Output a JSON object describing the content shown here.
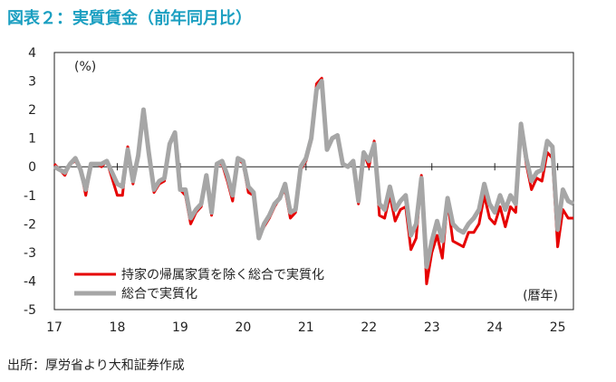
{
  "header": {
    "title": "図表２：実質賃金（前年同月比）"
  },
  "footer": {
    "source": "出所：厚労省より大和証券作成"
  },
  "chart_data": {
    "type": "line",
    "y_unit": "(%)",
    "x_unit": "(暦年)",
    "ylim": [
      -5,
      4
    ],
    "yticks": [
      4,
      3,
      2,
      1,
      0,
      -1,
      -2,
      -3,
      -4,
      -5
    ],
    "xticks": [
      "17",
      "18",
      "19",
      "20",
      "21",
      "22",
      "23",
      "24",
      "25"
    ],
    "grid": false,
    "legend_position": "bottom-left",
    "colors": {
      "red": "#e60000",
      "gray": "#a6a6a6",
      "title": "#1b9fc1"
    },
    "x_start": "2017-01",
    "series": [
      {
        "name": "持家の帰属家賃を除く総合で実質化",
        "color": "#e60000",
        "values": [
          0.1,
          -0.1,
          -0.3,
          0.1,
          0.2,
          -0.1,
          -1.0,
          0.1,
          0.1,
          0.0,
          0.2,
          -0.4,
          -1.0,
          -1.0,
          0.7,
          -0.6,
          0.3,
          2.0,
          0.4,
          -0.9,
          -0.6,
          -0.5,
          0.8,
          1.2,
          -0.8,
          -1.0,
          -2.0,
          -1.6,
          -1.4,
          -0.4,
          -1.7,
          0.1,
          0.1,
          -0.5,
          -1.2,
          0.3,
          0.1,
          -0.9,
          -1.0,
          -2.5,
          -2.1,
          -1.8,
          -1.4,
          -1.1,
          -0.8,
          -1.8,
          -1.6,
          -0.1,
          0.2,
          0.9,
          2.9,
          3.1,
          0.6,
          1.0,
          1.1,
          0.1,
          0.0,
          0.2,
          -1.3,
          0.5,
          0.0,
          0.9,
          -1.7,
          -1.8,
          -1.0,
          -1.9,
          -1.5,
          -1.4,
          -2.9,
          -2.5,
          -0.3,
          -4.1,
          -3.0,
          -2.4,
          -3.2,
          -1.2,
          -2.6,
          -2.7,
          -2.8,
          -2.3,
          -2.3,
          -2.0,
          -1.0,
          -1.8,
          -2.0,
          -1.4,
          -2.1,
          -1.4,
          -1.6,
          1.4,
          0.1,
          -0.8,
          -0.4,
          -0.5,
          0.5,
          0.3,
          -2.8,
          -1.5,
          -1.8,
          -1.8
        ]
      },
      {
        "name": "総合で実質化",
        "color": "#a6a6a6",
        "values": [
          0.0,
          -0.1,
          -0.2,
          0.1,
          0.3,
          -0.1,
          -0.8,
          0.1,
          0.1,
          0.1,
          0.2,
          -0.2,
          -0.6,
          -0.7,
          0.6,
          -0.5,
          0.4,
          2.0,
          0.5,
          -0.8,
          -0.5,
          -0.4,
          0.8,
          1.2,
          -0.8,
          -0.8,
          -1.8,
          -1.5,
          -1.3,
          -0.3,
          -1.6,
          0.1,
          0.2,
          -0.3,
          -1.0,
          0.3,
          0.2,
          -0.7,
          -0.9,
          -2.5,
          -2.0,
          -1.7,
          -1.3,
          -1.1,
          -0.6,
          -1.6,
          -1.5,
          0.0,
          0.3,
          1.0,
          2.7,
          3.0,
          0.6,
          1.0,
          1.1,
          0.1,
          0.0,
          0.2,
          -1.2,
          0.5,
          0.2,
          0.8,
          -1.3,
          -1.5,
          -0.7,
          -1.5,
          -1.2,
          -1.0,
          -2.4,
          -2.0,
          -0.4,
          -3.5,
          -2.6,
          -1.9,
          -2.6,
          -1.1,
          -2.0,
          -2.2,
          -2.3,
          -2.0,
          -1.8,
          -1.5,
          -0.6,
          -1.3,
          -1.6,
          -1.0,
          -1.5,
          -1.0,
          -1.3,
          1.5,
          0.3,
          -0.5,
          -0.2,
          -0.1,
          0.9,
          0.7,
          -2.2,
          -0.8,
          -1.2,
          -1.3
        ]
      }
    ]
  }
}
